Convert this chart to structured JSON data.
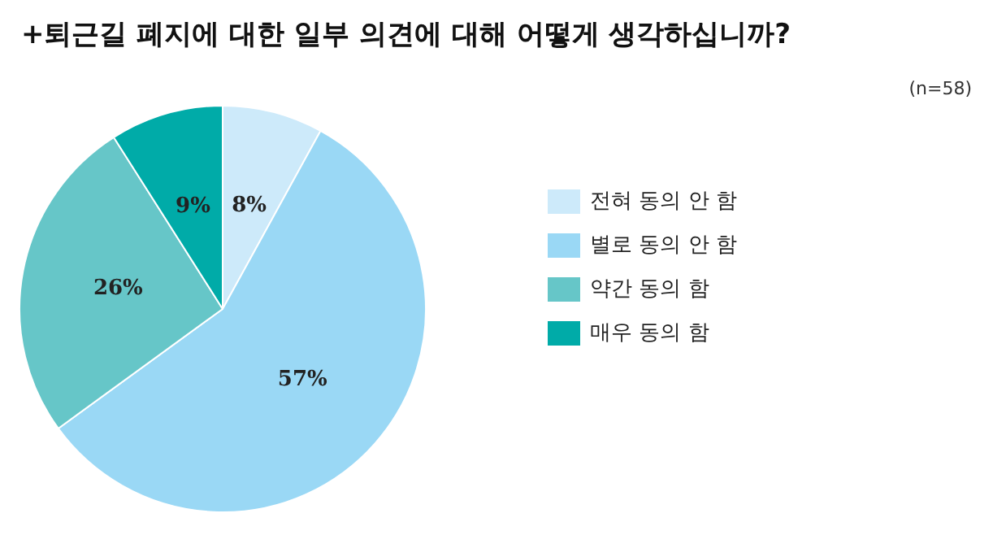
{
  "chart_data": {
    "type": "pie",
    "title": "+퇴근길 폐지에 대한 일부 의견에 대해 어떻게 생각하십니까?",
    "subtitle": "(n=58)",
    "categories": [
      "전혀 동의 안 함",
      "별로 동의 안 함",
      "약간 동의 함",
      "매우 동의 함"
    ],
    "values": [
      8,
      57,
      26,
      9
    ],
    "value_labels": [
      "8%",
      "57%",
      "26%",
      "9%"
    ],
    "colors": [
      "#cdeafa",
      "#9ad8f5",
      "#66c6c8",
      "#00aba8"
    ],
    "legend": "right"
  }
}
